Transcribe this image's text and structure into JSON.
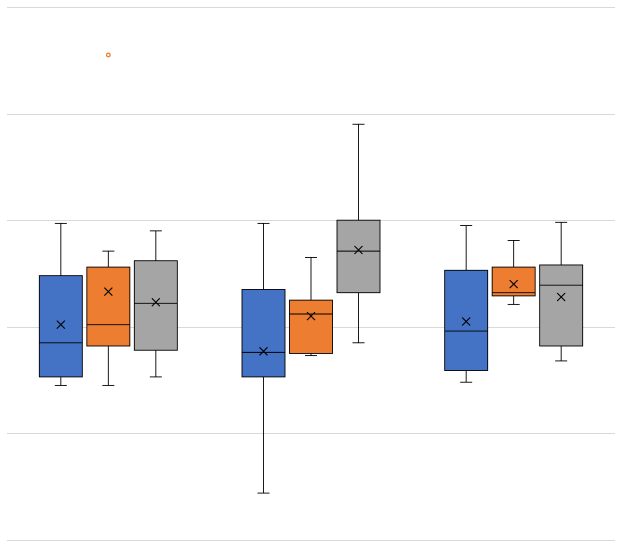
{
  "chart_data": {
    "type": "box",
    "title": "",
    "xlabel": "",
    "ylabel": "",
    "ylim": [
      0,
      5
    ],
    "gridlines": [
      0,
      1,
      2,
      3,
      4,
      5
    ],
    "grid": true,
    "legend": "none",
    "group_count": 3,
    "series": [
      {
        "color": "#4472C4",
        "boxes": [
          {
            "group": 1,
            "min": 1.45,
            "q1": 1.53,
            "median": 1.85,
            "q3": 2.48,
            "max": 2.97,
            "mean": 2.02,
            "outliers": []
          },
          {
            "group": 2,
            "min": 0.44,
            "q1": 1.53,
            "median": 1.76,
            "q3": 2.35,
            "max": 2.97,
            "mean": 1.77,
            "outliers": []
          },
          {
            "group": 3,
            "min": 1.48,
            "q1": 1.59,
            "median": 1.96,
            "q3": 2.53,
            "max": 2.95,
            "mean": 2.05,
            "outliers": []
          }
        ]
      },
      {
        "color": "#ED7D31",
        "boxes": [
          {
            "group": 1,
            "min": 1.45,
            "q1": 1.82,
            "median": 2.02,
            "q3": 2.56,
            "max": 2.71,
            "mean": 2.33,
            "outliers": [
              4.55
            ]
          },
          {
            "group": 2,
            "min": 1.73,
            "q1": 1.75,
            "median": 2.12,
            "q3": 2.25,
            "max": 2.65,
            "mean": 2.1,
            "outliers": []
          },
          {
            "group": 3,
            "min": 2.21,
            "q1": 2.29,
            "median": 2.32,
            "q3": 2.56,
            "max": 2.81,
            "mean": 2.4,
            "outliers": []
          }
        ]
      },
      {
        "color": "#A5A5A5",
        "boxes": [
          {
            "group": 1,
            "min": 1.53,
            "q1": 1.78,
            "median": 2.22,
            "q3": 2.62,
            "max": 2.9,
            "mean": 2.23,
            "outliers": []
          },
          {
            "group": 2,
            "min": 1.85,
            "q1": 2.32,
            "median": 2.71,
            "q3": 3.0,
            "max": 3.9,
            "mean": 2.72,
            "outliers": []
          },
          {
            "group": 3,
            "min": 1.68,
            "q1": 1.82,
            "median": 2.39,
            "q3": 2.58,
            "max": 2.98,
            "mean": 2.28,
            "outliers": []
          }
        ]
      }
    ]
  }
}
